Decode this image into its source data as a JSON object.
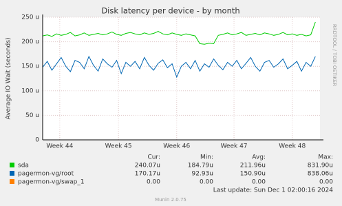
{
  "chart_data": {
    "type": "line",
    "title": "Disk latency per device - by month",
    "y_label": "Average IO Wait (seconds)",
    "x": [
      0,
      1,
      2,
      3,
      4,
      5,
      6,
      7,
      8,
      9,
      10,
      11,
      12,
      13,
      14,
      15,
      16,
      17,
      18,
      19,
      20,
      21,
      22,
      23,
      24,
      25,
      26,
      27,
      28,
      29,
      30,
      31,
      32,
      33,
      34,
      35,
      36,
      37,
      38,
      39,
      40,
      41,
      42,
      43,
      44,
      45,
      46,
      47,
      48,
      49,
      50,
      51,
      52,
      53,
      54,
      55,
      56,
      57,
      58,
      59
    ],
    "xlim": [
      0,
      60
    ],
    "xticks": [
      {
        "value": 3.7,
        "label": "Week 44"
      },
      {
        "value": 16.4,
        "label": "Week 45"
      },
      {
        "value": 29,
        "label": "Week 46"
      },
      {
        "value": 41.4,
        "label": "Week 47"
      },
      {
        "value": 54,
        "label": "Week 48"
      }
    ],
    "ylim": [
      0,
      250
    ],
    "yticks": [
      {
        "value": 0,
        "label": "0"
      },
      {
        "value": 50,
        "label": "50 u"
      },
      {
        "value": 100,
        "label": "100 u"
      },
      {
        "value": 150,
        "label": "150 u"
      },
      {
        "value": 200,
        "label": "200 u"
      },
      {
        "value": 250,
        "label": "250 u"
      }
    ],
    "grid": true,
    "series": [
      {
        "name": "sda",
        "color": "#00cc00",
        "values": [
          212,
          214,
          211,
          216,
          213,
          215,
          219,
          212,
          214,
          218,
          213,
          215,
          217,
          214,
          216,
          220,
          215,
          213,
          217,
          219,
          216,
          214,
          218,
          215,
          217,
          221,
          216,
          214,
          218,
          215,
          213,
          216,
          214,
          212,
          196,
          195,
          197,
          196,
          213,
          215,
          218,
          214,
          216,
          219,
          213,
          215,
          217,
          214,
          218,
          216,
          213,
          215,
          219,
          214,
          216,
          213,
          215,
          212,
          214,
          240
        ]
      },
      {
        "name": "pagermon-vg/root",
        "color": "#0066b3",
        "values": [
          148,
          160,
          142,
          155,
          168,
          150,
          139,
          162,
          158,
          145,
          170,
          152,
          140,
          165,
          155,
          148,
          162,
          135,
          158,
          150,
          160,
          145,
          168,
          152,
          142,
          156,
          163,
          147,
          155,
          128,
          150,
          158,
          145,
          162,
          140,
          155,
          148,
          165,
          152,
          143,
          158,
          150,
          162,
          145,
          156,
          168,
          150,
          140,
          158,
          162,
          148,
          155,
          165,
          145,
          152,
          160,
          140,
          158,
          150,
          170
        ]
      },
      {
        "name": "pagermon-vg/swap_1",
        "color": "#ff8000",
        "values": [
          0,
          0,
          0,
          0,
          0,
          0,
          0,
          0,
          0,
          0,
          0,
          0,
          0,
          0,
          0,
          0,
          0,
          0,
          0,
          0,
          0,
          0,
          0,
          0,
          0,
          0,
          0,
          0,
          0,
          0,
          0,
          0,
          0,
          0,
          0,
          0,
          0,
          0,
          0,
          0,
          0,
          0,
          0,
          0,
          0,
          0,
          0,
          0,
          0,
          0,
          0,
          0,
          0,
          0,
          0,
          0,
          0,
          0,
          0,
          0
        ]
      }
    ],
    "legend_table": {
      "headers": [
        "Cur:",
        "Min:",
        "Avg:",
        "Max:"
      ],
      "rows": [
        [
          "240.07u",
          "184.79u",
          "211.96u",
          "831.90u"
        ],
        [
          "170.17u",
          "92.93u",
          "150.90u",
          "838.06u"
        ],
        [
          "0.00",
          "0.00",
          "0.00",
          "0.00"
        ]
      ]
    },
    "last_update": "Last update: Sun Dec  1 02:00:16 2024",
    "footer": "Munin 2.0.75",
    "side_label": "RRDTOOL / TOBI OETIKER"
  }
}
